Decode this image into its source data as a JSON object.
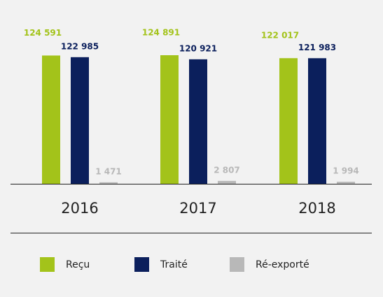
{
  "chart_data": {
    "type": "bar",
    "categories": [
      "2016",
      "2017",
      "2018"
    ],
    "series": [
      {
        "name": "Reçu",
        "color": "#a3c31a",
        "values": [
          124591,
          124891,
          122017
        ],
        "value_labels": [
          "124 591",
          "124 891",
          "122 017"
        ]
      },
      {
        "name": "Traité",
        "color": "#0b1f5c",
        "values": [
          122985,
          120921,
          121983
        ],
        "value_labels": [
          "122 985",
          "120 921",
          "121 983"
        ]
      },
      {
        "name": "Ré-exporté",
        "color": "#b8b8b8",
        "values": [
          1471,
          2807,
          1994
        ],
        "value_labels": [
          "1 471",
          "2 807",
          "1 994"
        ]
      }
    ]
  }
}
